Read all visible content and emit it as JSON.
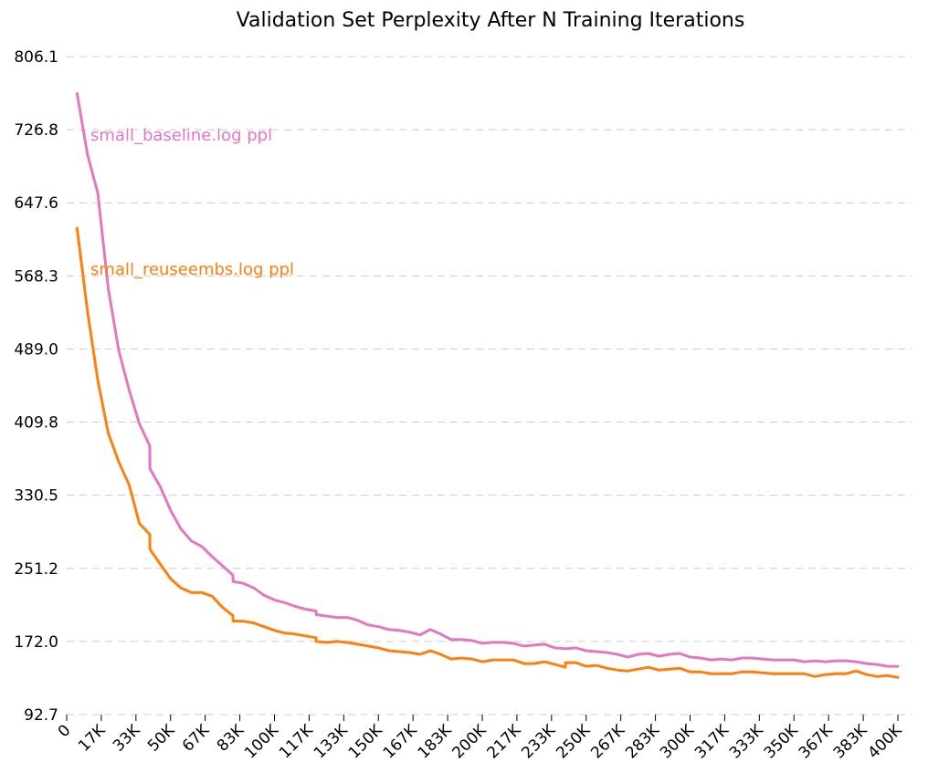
{
  "chart_data": {
    "type": "line",
    "title": "Validation Set Perplexity After N Training Iterations",
    "xlabel": "",
    "ylabel": "",
    "xlim": [
      0,
      400000
    ],
    "ylim": [
      92.7,
      806.1
    ],
    "yticks": [
      {
        "value": 806.1,
        "label": "806.1"
      },
      {
        "value": 726.8,
        "label": "726.8"
      },
      {
        "value": 647.6,
        "label": "647.6"
      },
      {
        "value": 568.3,
        "label": "568.3"
      },
      {
        "value": 489.0,
        "label": "489.0"
      },
      {
        "value": 409.8,
        "label": "409.8"
      },
      {
        "value": 330.5,
        "label": "330.5"
      },
      {
        "value": 251.2,
        "label": "251.2"
      },
      {
        "value": 172.0,
        "label": "172.0"
      },
      {
        "value": 92.7,
        "label": "92.7"
      }
    ],
    "xticks": [
      {
        "value": 0,
        "label": "0"
      },
      {
        "value": 16667,
        "label": "17K"
      },
      {
        "value": 33333,
        "label": "33K"
      },
      {
        "value": 50000,
        "label": "50K"
      },
      {
        "value": 66667,
        "label": "67K"
      },
      {
        "value": 83333,
        "label": "83K"
      },
      {
        "value": 100000,
        "label": "100K"
      },
      {
        "value": 116667,
        "label": "117K"
      },
      {
        "value": 133333,
        "label": "133K"
      },
      {
        "value": 150000,
        "label": "150K"
      },
      {
        "value": 166667,
        "label": "167K"
      },
      {
        "value": 183333,
        "label": "183K"
      },
      {
        "value": 200000,
        "label": "200K"
      },
      {
        "value": 216667,
        "label": "217K"
      },
      {
        "value": 233333,
        "label": "233K"
      },
      {
        "value": 250000,
        "label": "250K"
      },
      {
        "value": 266667,
        "label": "267K"
      },
      {
        "value": 283333,
        "label": "283K"
      },
      {
        "value": 300000,
        "label": "300K"
      },
      {
        "value": 316667,
        "label": "317K"
      },
      {
        "value": 333333,
        "label": "333K"
      },
      {
        "value": 350000,
        "label": "350K"
      },
      {
        "value": 366667,
        "label": "367K"
      },
      {
        "value": 383333,
        "label": "383K"
      },
      {
        "value": 400000,
        "label": "400K"
      }
    ],
    "grid": "horizontal-dashed",
    "series": [
      {
        "name": "small_baseline.log ppl",
        "color": "#e377c2",
        "x": [
          5000,
          10000,
          15000,
          20000,
          25000,
          30000,
          35000,
          40000,
          40100,
          45000,
          50000,
          55000,
          60000,
          65000,
          70000,
          75000,
          80000,
          80100,
          85000,
          90000,
          95000,
          100000,
          105000,
          110000,
          115000,
          120000,
          120100,
          130000,
          135000,
          140000,
          145000,
          150000,
          155000,
          160000,
          165000,
          170000,
          175000,
          180000,
          185000,
          190000,
          195000,
          200000,
          205000,
          210000,
          215000,
          220000,
          225000,
          230000,
          235000,
          240000,
          245000,
          250000,
          255000,
          260000,
          265000,
          270000,
          275000,
          280000,
          285000,
          290000,
          295000,
          300000,
          305000,
          310000,
          315000,
          320000,
          325000,
          330000,
          335000,
          340000,
          345000,
          350000,
          355000,
          360000,
          365000,
          370000,
          375000,
          380000,
          385000,
          390000,
          395000,
          400000
        ],
        "y": [
          766,
          700,
          658,
          555,
          488,
          445,
          408,
          384,
          359,
          340,
          314,
          294,
          281,
          275,
          264,
          254,
          244,
          237,
          235,
          230,
          222,
          217,
          214,
          210,
          207,
          205,
          201,
          198,
          198,
          195,
          190,
          188,
          185,
          184,
          182,
          179,
          185,
          180,
          174,
          174,
          173,
          170,
          171,
          171,
          170,
          167,
          168,
          169,
          165,
          164,
          165,
          162,
          161,
          160,
          158,
          155,
          158,
          159,
          156,
          158,
          159,
          155,
          154,
          152,
          153,
          152,
          154,
          154,
          153,
          152,
          152,
          152,
          150,
          151,
          150,
          151,
          151,
          150,
          148,
          147,
          145,
          145
        ]
      },
      {
        "name": "small_reuseembs.log ppl",
        "color": "#ff7f0e",
        "x": [
          5000,
          10000,
          15000,
          20000,
          25000,
          30000,
          35000,
          40000,
          40100,
          45000,
          50000,
          55000,
          60000,
          65000,
          70000,
          75000,
          80000,
          80100,
          85000,
          90000,
          95000,
          100000,
          105000,
          110000,
          115000,
          120000,
          120100,
          125000,
          130000,
          135000,
          140000,
          145000,
          150000,
          155000,
          160000,
          165000,
          170000,
          175000,
          180000,
          185000,
          190000,
          195000,
          200000,
          205000,
          210000,
          215000,
          220000,
          225000,
          230000,
          235000,
          240000,
          240100,
          245000,
          250000,
          255000,
          260000,
          265000,
          270000,
          275000,
          280000,
          285000,
          290000,
          295000,
          300000,
          305000,
          310000,
          315000,
          320000,
          325000,
          330000,
          335000,
          340000,
          345000,
          350000,
          355000,
          360000,
          365000,
          370000,
          375000,
          380000,
          385000,
          390000,
          395000,
          400000
        ],
        "y": [
          620,
          530,
          455,
          398,
          367,
          342,
          300,
          288,
          272,
          256,
          240,
          230,
          225,
          225,
          221,
          209,
          200,
          194,
          194,
          192,
          188,
          184,
          181,
          180,
          178,
          176,
          172,
          171,
          172,
          171,
          169,
          167,
          165,
          162,
          161,
          160,
          158,
          162,
          158,
          153,
          154,
          153,
          150,
          152,
          152,
          152,
          148,
          148,
          150,
          147,
          144,
          149,
          149,
          145,
          146,
          143,
          141,
          140,
          142,
          144,
          141,
          142,
          143,
          139,
          139,
          137,
          137,
          137,
          139,
          139,
          138,
          137,
          137,
          137,
          137,
          134,
          136,
          137,
          137,
          140,
          136,
          134,
          135,
          133
        ]
      }
    ]
  }
}
